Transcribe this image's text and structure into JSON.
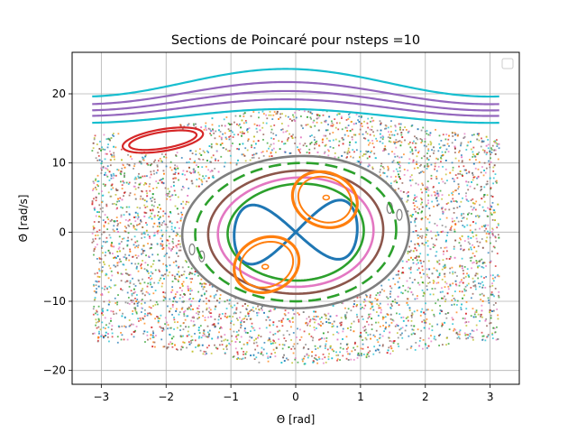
{
  "chart_data": {
    "type": "scatter",
    "title": "Sections de Poincaré pour nsteps =10",
    "xlabel": "Θ [rad]",
    "ylabel": "Θ̇ [rad/s]",
    "xlim": [
      -3.45,
      3.45
    ],
    "ylim": [
      -22,
      26
    ],
    "xticks": [
      -3,
      -2,
      -1,
      0,
      1,
      2,
      3
    ],
    "xtick_labels": [
      "−3",
      "−2",
      "−1",
      "0",
      "1",
      "2",
      "3"
    ],
    "yticks": [
      -20,
      -10,
      0,
      10,
      20
    ],
    "ytick_labels": [
      "−20",
      "−10",
      "0",
      "10",
      "20"
    ],
    "grid": true,
    "legend": {
      "location": "upper right",
      "entries": []
    },
    "chaotic_sea": {
      "colors": [
        "#bcbd22",
        "#d62728",
        "#ff7f0e",
        "#8c564b",
        "#7f7f7f",
        "#2ca02c",
        "#1f77b4",
        "#e377c2",
        "#17becf"
      ],
      "x_range": [
        -3.14,
        3.14
      ],
      "description_free": true
    },
    "series": [
      {
        "kind": "rotational",
        "color": "#17becf",
        "y0": 21.6,
        "amp": 2.0
      },
      {
        "kind": "rotational",
        "color": "#9467bd",
        "y0": 20.1,
        "amp": 1.6
      },
      {
        "kind": "rotational",
        "color": "#9467bd",
        "y0": 19.0,
        "amp": 1.4
      },
      {
        "kind": "rotational",
        "color": "#9467bd",
        "y0": 18.0,
        "amp": 1.2
      },
      {
        "kind": "rotational",
        "color": "#17becf",
        "y0": 16.8,
        "amp": 1.0
      },
      {
        "kind": "island",
        "color": "#d62728",
        "cx": -2.05,
        "cy": 13.3,
        "rx": 0.62,
        "ry": 1.6,
        "tilt": 0.45
      },
      {
        "kind": "island",
        "color": "#d62728",
        "cx": -2.05,
        "cy": 13.3,
        "rx": 0.52,
        "ry": 1.2,
        "tilt": 0.45
      },
      {
        "kind": "oval",
        "color": "#7f7f7f",
        "rx": 1.75,
        "ry": 11.0
      },
      {
        "kind": "oval",
        "color": "#2ca02c",
        "rx": 1.55,
        "ry": 10.0,
        "dashed": true
      },
      {
        "kind": "oval",
        "color": "#8c564b",
        "rx": 1.35,
        "ry": 8.9
      },
      {
        "kind": "oval",
        "color": "#e377c2",
        "rx": 1.2,
        "ry": 7.9
      },
      {
        "kind": "oval",
        "color": "#2ca02c",
        "rx": 1.05,
        "ry": 7.0
      },
      {
        "kind": "figure8",
        "color": "#1f77b4"
      },
      {
        "kind": "lobe",
        "color": "#ff7f0e",
        "cx": 0.45,
        "cy": 4.7,
        "rx": 0.5,
        "ry": 4.0
      },
      {
        "kind": "lobe",
        "color": "#ff7f0e",
        "cx": -0.45,
        "cy": -4.7,
        "rx": 0.5,
        "ry": 4.0
      },
      {
        "kind": "center",
        "color": "#ff7f0e",
        "x": 0.47,
        "y": 5.0
      },
      {
        "kind": "center",
        "color": "#ff7f0e",
        "x": -0.47,
        "y": -5.0
      }
    ]
  }
}
